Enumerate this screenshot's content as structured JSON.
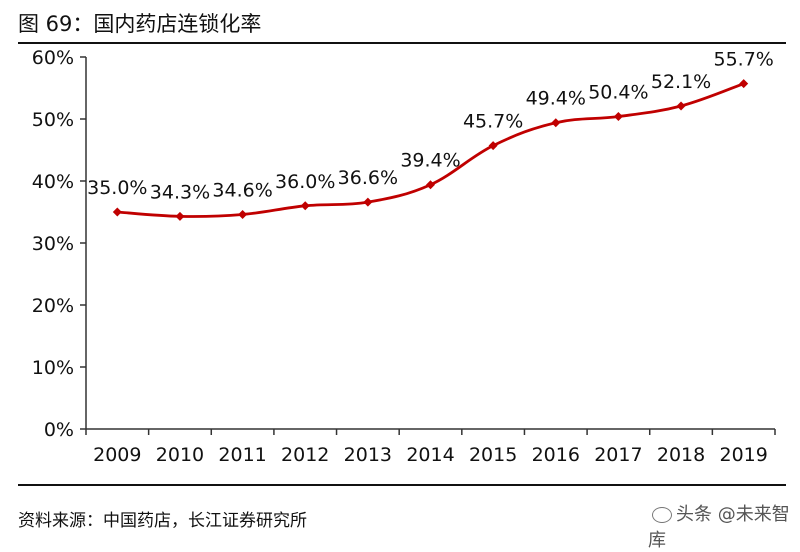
{
  "figure": {
    "title": "图 69：国内药店连锁化率",
    "source": "资料来源：中国药店，长江证券研究所",
    "watermark": "头条 @未来智库"
  },
  "chart_data": {
    "type": "line",
    "title": "",
    "xlabel": "",
    "ylabel": "",
    "x": [
      "2009",
      "2010",
      "2011",
      "2012",
      "2013",
      "2014",
      "2015",
      "2016",
      "2017",
      "2018",
      "2019"
    ],
    "series": [
      {
        "values": [
          35.0,
          34.3,
          34.6,
          36.0,
          36.6,
          39.4,
          45.7,
          49.4,
          50.4,
          52.1,
          55.7
        ],
        "labels": [
          "35.0%",
          "34.3%",
          "34.6%",
          "36.0%",
          "36.6%",
          "39.4%",
          "45.7%",
          "49.4%",
          "50.4%",
          "52.1%",
          "55.7%"
        ],
        "color": "#c00000"
      }
    ],
    "ylim": [
      0,
      60
    ],
    "yticks": [
      "0%",
      "10%",
      "20%",
      "30%",
      "40%",
      "50%",
      "60%"
    ],
    "grid": false,
    "legend": "none",
    "smooth": true
  }
}
